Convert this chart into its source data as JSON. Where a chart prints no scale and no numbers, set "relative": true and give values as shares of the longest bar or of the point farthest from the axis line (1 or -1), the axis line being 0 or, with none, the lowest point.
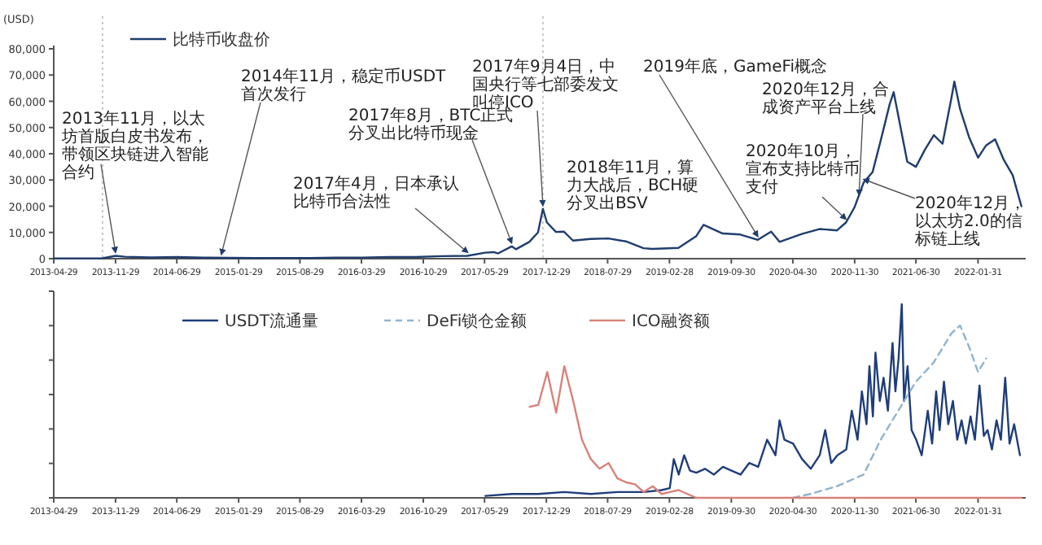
{
  "chart_data": [
    {
      "type": "line",
      "ylabel": "(USD)",
      "legend": "top left",
      "xlim": [
        "2013-04-29",
        "2022-07-15"
      ],
      "ylim": [
        0,
        80000
      ],
      "xticks": [
        "2013-04-29",
        "2013-11-29",
        "2014-06-29",
        "2015-01-29",
        "2015-08-29",
        "2016-03-29",
        "2016-10-29",
        "2017-05-29",
        "2017-12-29",
        "2018-07-29",
        "2019-02-28",
        "2019-09-30",
        "2020-04-30",
        "2020-11-30",
        "2021-06-30",
        "2022-01-31"
      ],
      "yticks": [
        {
          "value": 0,
          "label": "0"
        },
        {
          "value": 10000,
          "label": "10,000"
        },
        {
          "value": 20000,
          "label": "20,000"
        },
        {
          "value": 30000,
          "label": "30,000"
        },
        {
          "value": 40000,
          "label": "40,000"
        },
        {
          "value": 50000,
          "label": "50,000"
        },
        {
          "value": 60000,
          "label": "60,000"
        },
        {
          "value": 70000,
          "label": "70,000"
        },
        {
          "value": 80000,
          "label": "80,000"
        }
      ],
      "ref_lines": [
        {
          "axis": "x",
          "value": "2013-10-15",
          "line_style": "dotted",
          "color": "#c8c8c8"
        },
        {
          "axis": "x",
          "value": "2017-12-17",
          "line_style": "dotted",
          "color": "#c8c8c8"
        }
      ],
      "series": [
        {
          "name": "比特币收盘价",
          "color": "#1f3d6e",
          "line_style": "solid",
          "x": [
            "2013-05-01",
            "2013-08-01",
            "2013-10-15",
            "2013-11-29",
            "2013-12-31",
            "2014-03-31",
            "2014-06-30",
            "2014-09-30",
            "2014-12-31",
            "2015-03-31",
            "2015-06-30",
            "2015-09-30",
            "2015-12-31",
            "2016-03-31",
            "2016-06-30",
            "2016-09-30",
            "2016-12-31",
            "2017-03-31",
            "2017-05-31",
            "2017-06-30",
            "2017-07-15",
            "2017-08-31",
            "2017-09-15",
            "2017-10-31",
            "2017-11-30",
            "2017-12-17",
            "2017-12-31",
            "2018-01-31",
            "2018-02-28",
            "2018-03-31",
            "2018-05-31",
            "2018-07-31",
            "2018-09-30",
            "2018-11-30",
            "2018-12-31",
            "2019-03-31",
            "2019-05-31",
            "2019-06-26",
            "2019-08-31",
            "2019-10-31",
            "2019-12-31",
            "2020-02-15",
            "2020-03-15",
            "2020-05-31",
            "2020-07-31",
            "2020-09-30",
            "2020-10-31",
            "2020-11-30",
            "2020-12-31",
            "2021-01-31",
            "2021-02-28",
            "2021-03-31",
            "2021-04-14",
            "2021-05-31",
            "2021-06-30",
            "2021-07-31",
            "2021-08-31",
            "2021-09-30",
            "2021-10-31",
            "2021-11-10",
            "2021-11-30",
            "2021-12-31",
            "2022-01-31",
            "2022-02-28",
            "2022-03-31",
            "2022-04-30",
            "2022-05-31",
            "2022-06-30"
          ],
          "values": [
            130,
            130,
            150,
            1100,
            750,
            450,
            640,
            390,
            320,
            245,
            260,
            235,
            430,
            415,
            670,
            610,
            960,
            1070,
            2300,
            2500,
            2000,
            4700,
            3600,
            6400,
            10000,
            19000,
            13800,
            10200,
            10300,
            6900,
            7500,
            7700,
            6600,
            4000,
            3700,
            4100,
            8500,
            12900,
            9600,
            9200,
            7200,
            10300,
            6400,
            9400,
            11300,
            10800,
            13800,
            19700,
            29000,
            33000,
            45000,
            58800,
            63500,
            37000,
            35000,
            41500,
            47100,
            43800,
            61300,
            67500,
            57000,
            46300,
            38500,
            43200,
            45500,
            37700,
            31800,
            20000
          ]
        }
      ],
      "annotations": [
        {
          "text": "2013年11月，以太坊首版白皮书发布，带领区块链进入智能合约",
          "x": "2013-11-29",
          "y": 1100
        },
        {
          "text": "2014年11月，稳定币USDT首次发行",
          "x": "2014-11-30",
          "y": 350
        },
        {
          "text": "2017年4月，日本承认比特币合法性",
          "x": "2017-04-01",
          "y": 1100
        },
        {
          "text": "2017年8月，BTC正式分叉出比特币现金",
          "x": "2017-08-31",
          "y": 4700
        },
        {
          "text": "2017年9月4日，中国央行等七部委发文叫停ICO",
          "x": "2017-12-17",
          "y": 19000
        },
        "2018年11月，算力大战后，BCH硬分叉出BSV",
        {
          "text": "2019年底，GameFi概念",
          "x": "2019-12-31",
          "y": 7200
        },
        {
          "text": "2020年10月，宣布支持比特币支付",
          "x": "2020-10-31",
          "y": 13800
        },
        {
          "text": "2020年12月，合成资产平台上线",
          "x": "2020-12-15",
          "y": 23000
        },
        {
          "text": "2020年12月，以太坊2.0的信标链上线",
          "x": "2020-12-31",
          "y": 29000
        }
      ]
    },
    {
      "type": "line",
      "relative": true,
      "tick_labels": "x",
      "legend": "top",
      "xlim": [
        "2013-04-29",
        "2022-07-15"
      ],
      "xticks": [
        "2013-04-29",
        "2013-11-29",
        "2014-06-29",
        "2015-01-29",
        "2015-08-29",
        "2016-03-29",
        "2016-10-29",
        "2017-05-29",
        "2017-12-29",
        "2018-07-29",
        "2019-02-28",
        "2019-09-30",
        "2020-04-30",
        "2020-11-30",
        "2021-06-30",
        "2022-01-31"
      ],
      "series": [
        {
          "name": "USDT流通量",
          "color": "#1f3d7a",
          "line_style": "solid",
          "x": [
            "2017-06-01",
            "2017-09-01",
            "2017-12-01",
            "2018-03-01",
            "2018-06-01",
            "2018-09-01",
            "2018-12-01",
            "2019-02-01",
            "2019-03-01",
            "2019-03-15",
            "2019-04-01",
            "2019-04-20",
            "2019-05-10",
            "2019-06-01",
            "2019-07-01",
            "2019-08-01",
            "2019-09-01",
            "2019-10-01",
            "2019-11-01",
            "2019-12-01",
            "2020-01-01",
            "2020-02-01",
            "2020-03-01",
            "2020-03-15",
            "2020-04-01",
            "2020-05-01",
            "2020-06-01",
            "2020-07-01",
            "2020-08-01",
            "2020-08-20",
            "2020-09-10",
            "2020-10-01",
            "2020-11-01",
            "2020-11-20",
            "2020-12-10",
            "2020-12-25",
            "2021-01-10",
            "2021-01-20",
            "2021-02-01",
            "2021-02-10",
            "2021-02-25",
            "2021-03-10",
            "2021-03-25",
            "2021-04-10",
            "2021-04-20",
            "2021-05-01",
            "2021-05-12",
            "2021-05-20",
            "2021-06-01",
            "2021-06-15",
            "2021-07-01",
            "2021-07-20",
            "2021-08-10",
            "2021-08-25",
            "2021-09-08",
            "2021-09-20",
            "2021-10-05",
            "2021-10-20",
            "2021-11-05",
            "2021-11-20",
            "2021-12-05",
            "2021-12-20",
            "2022-01-05",
            "2022-01-20",
            "2022-02-05",
            "2022-02-20",
            "2022-03-05",
            "2022-03-20",
            "2022-04-05",
            "2022-04-20",
            "2022-05-05",
            "2022-05-20",
            "2022-06-05",
            "2022-06-25"
          ],
          "values": [
            0.01,
            0.02,
            0.02,
            0.03,
            0.02,
            0.03,
            0.03,
            0.04,
            0.05,
            0.2,
            0.12,
            0.22,
            0.14,
            0.13,
            0.15,
            0.12,
            0.16,
            0.14,
            0.12,
            0.18,
            0.16,
            0.3,
            0.22,
            0.4,
            0.3,
            0.28,
            0.2,
            0.15,
            0.22,
            0.35,
            0.18,
            0.22,
            0.25,
            0.45,
            0.3,
            0.55,
            0.38,
            0.68,
            0.42,
            0.75,
            0.5,
            0.62,
            0.45,
            0.8,
            0.55,
            0.72,
            1.0,
            0.5,
            0.68,
            0.35,
            0.3,
            0.22,
            0.45,
            0.28,
            0.55,
            0.35,
            0.6,
            0.38,
            0.5,
            0.3,
            0.4,
            0.28,
            0.42,
            0.3,
            0.58,
            0.32,
            0.35,
            0.25,
            0.4,
            0.3,
            0.62,
            0.28,
            0.38,
            0.22
          ]
        },
        {
          "name": "DeFi锁仓金额",
          "color": "#8fb3cf",
          "line_style": "dashed",
          "x": [
            "2020-04-30",
            "2020-06-30",
            "2020-09-30",
            "2020-12-31",
            "2021-02-28",
            "2021-04-30",
            "2021-06-30",
            "2021-08-31",
            "2021-10-31",
            "2021-11-30",
            "2021-12-31",
            "2022-01-31",
            "2022-02-28"
          ],
          "values": [
            0.0,
            0.02,
            0.06,
            0.12,
            0.3,
            0.45,
            0.6,
            0.7,
            0.85,
            0.89,
            0.78,
            0.65,
            0.72
          ]
        },
        {
          "name": "ICO融资额",
          "color": "#d9827a",
          "line_style": "solid",
          "x": [
            "2017-11-01",
            "2017-12-01",
            "2018-01-01",
            "2018-02-01",
            "2018-03-01",
            "2018-04-01",
            "2018-05-01",
            "2018-06-01",
            "2018-07-01",
            "2018-08-01",
            "2018-09-01",
            "2018-10-01",
            "2018-11-01",
            "2018-12-01",
            "2019-01-01",
            "2019-02-01",
            "2019-03-01",
            "2019-04-01",
            "2019-05-01",
            "2019-06-01",
            "2022-06-30"
          ],
          "values": [
            0.47,
            0.48,
            0.65,
            0.44,
            0.68,
            0.5,
            0.3,
            0.2,
            0.15,
            0.18,
            0.1,
            0.08,
            0.07,
            0.03,
            0.06,
            0.02,
            0.03,
            0.04,
            0.02,
            0.0,
            0.0
          ]
        }
      ]
    }
  ]
}
